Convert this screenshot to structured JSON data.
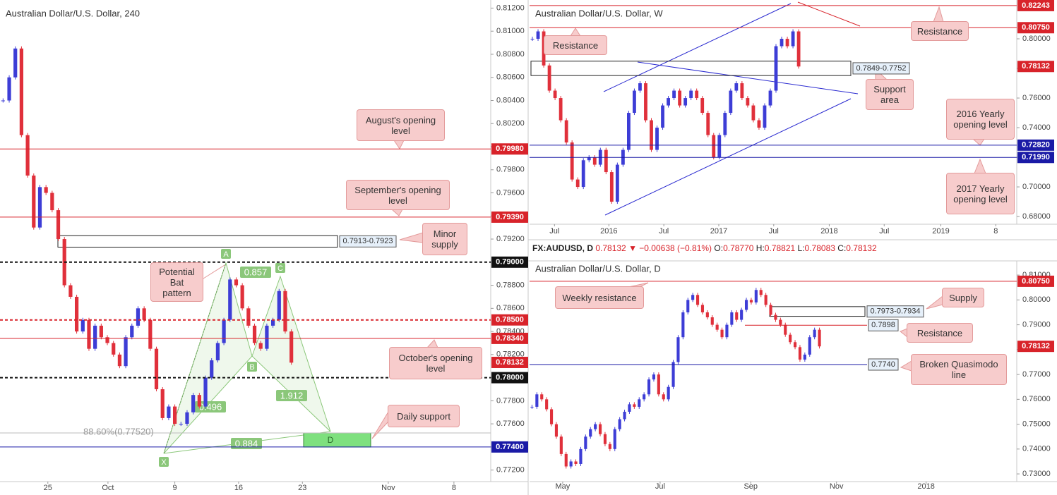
{
  "chart_data": [
    {
      "type": "candlestick",
      "title": "Australian Dollar/U.S. Dollar, 240",
      "up_color": "#3d3dd6",
      "down_color": "#e0303b",
      "closes": [
        0.804,
        0.806,
        0.8085,
        0.801,
        0.7975,
        0.793,
        0.7965,
        0.796,
        0.7945,
        0.792,
        0.788,
        0.787,
        0.784,
        0.785,
        0.7825,
        0.7845,
        0.7835,
        0.783,
        0.782,
        0.781,
        0.7835,
        0.7845,
        0.786,
        0.785,
        0.7825,
        0.779,
        0.7765,
        0.7775,
        0.776,
        0.776,
        0.777,
        0.7785,
        0.7775,
        0.78,
        0.7815,
        0.783,
        0.785,
        0.7885,
        0.788,
        0.786,
        0.7845,
        0.783,
        0.7825,
        0.7845,
        0.785,
        0.7875,
        0.784,
        0.7813
      ],
      "xlim": [
        0,
        80
      ],
      "xticks": [
        {
          "value": 7.8,
          "label": "25"
        },
        {
          "value": 17.6,
          "label": "Oct"
        },
        {
          "value": 28.5,
          "label": "9"
        },
        {
          "value": 38.9,
          "label": "16"
        },
        {
          "value": 49.3,
          "label": "23"
        },
        {
          "value": 63.3,
          "label": "Nov"
        },
        {
          "value": 74,
          "label": "8"
        }
      ],
      "ylim": [
        0.771,
        0.8127
      ],
      "yticks": [
        {
          "value": 0.812,
          "label": "0.81200"
        },
        {
          "value": 0.81,
          "label": "0.81000"
        },
        {
          "value": 0.808,
          "label": "0.80800"
        },
        {
          "value": 0.806,
          "label": "0.80600"
        },
        {
          "value": 0.804,
          "label": "0.80400"
        },
        {
          "value": 0.802,
          "label": "0.80200"
        },
        {
          "value": 0.8,
          "label": "0.80000"
        },
        {
          "value": 0.798,
          "label": "0.79800"
        },
        {
          "value": 0.796,
          "label": "0.79600"
        },
        {
          "value": 0.794,
          "label": "0.79400"
        },
        {
          "value": 0.792,
          "label": "0.79200"
        },
        {
          "value": 0.79,
          "label": "0.79000"
        },
        {
          "value": 0.788,
          "label": "0.78800"
        },
        {
          "value": 0.786,
          "label": "0.78600"
        },
        {
          "value": 0.784,
          "label": "0.78400"
        },
        {
          "value": 0.782,
          "label": "0.78200"
        },
        {
          "value": 0.78,
          "label": "0.78000"
        },
        {
          "value": 0.778,
          "label": "0.77800"
        },
        {
          "value": 0.776,
          "label": "0.77600"
        },
        {
          "value": 0.774,
          "label": "0.77400"
        },
        {
          "value": 0.772,
          "label": "0.77200"
        }
      ],
      "levels": [
        {
          "value": 0.7998,
          "label": "0.79980",
          "color": "#d8232a",
          "style": "solid"
        },
        {
          "value": 0.7939,
          "label": "0.79390",
          "color": "#d8232a",
          "style": "solid"
        },
        {
          "value": 0.79,
          "label": "0.79000",
          "color": "#111111",
          "style": "dashed"
        },
        {
          "value": 0.785,
          "label": "0.78500",
          "color": "#d8232a",
          "style": "dashed"
        },
        {
          "value": 0.7834,
          "label": "0.78340",
          "color": "#d8232a",
          "style": "solid"
        },
        {
          "value": 0.78132,
          "label": "0.78132",
          "color": "#d8232a",
          "style": "none"
        },
        {
          "value": 0.78,
          "label": "0.78000",
          "color": "#111111",
          "style": "dashed"
        },
        {
          "value": 0.774,
          "label": "0.77400",
          "color": "#1a1aa6",
          "style": "solid"
        }
      ],
      "zones": [
        {
          "low": 0.7913,
          "high": 0.7923,
          "label": "0.7913-0.7923"
        }
      ],
      "annotations": [
        "August's opening level",
        "September's opening level",
        "Minor supply",
        "Potential Bat pattern",
        "October's opening level",
        "Daily support"
      ],
      "pattern_points": [
        "X",
        "A",
        "B",
        "C",
        "D"
      ],
      "ratios": [
        0.857,
        0.496,
        1.912,
        0.884
      ],
      "retracement_label": "88.60%(0.77520)"
    },
    {
      "type": "candlestick",
      "title": "Australian Dollar/U.S. Dollar, W",
      "up_color": "#3d3dd6",
      "down_color": "#e0303b",
      "closes": [
        0.8,
        0.805,
        0.782,
        0.765,
        0.76,
        0.745,
        0.73,
        0.705,
        0.7,
        0.718,
        0.72,
        0.715,
        0.725,
        0.71,
        0.69,
        0.715,
        0.725,
        0.75,
        0.765,
        0.77,
        0.745,
        0.725,
        0.74,
        0.755,
        0.76,
        0.765,
        0.755,
        0.76,
        0.765,
        0.76,
        0.75,
        0.735,
        0.72,
        0.735,
        0.75,
        0.765,
        0.77,
        0.76,
        0.755,
        0.745,
        0.74,
        0.755,
        0.765,
        0.795,
        0.8,
        0.795,
        0.805,
        0.7813
      ],
      "xlim": [
        0,
        86
      ],
      "xticks": [
        {
          "value": 4.4,
          "label": "Jul"
        },
        {
          "value": 14.0,
          "label": "2016"
        },
        {
          "value": 23.7,
          "label": "Jul"
        },
        {
          "value": 33.4,
          "label": "2017"
        },
        {
          "value": 43.1,
          "label": "Jul"
        },
        {
          "value": 52.9,
          "label": "2018"
        },
        {
          "value": 62.6,
          "label": "Jul"
        },
        {
          "value": 72.6,
          "label": "2019"
        },
        {
          "value": 82.3,
          "label": "8"
        }
      ],
      "ylim": [
        0.6748,
        0.8262
      ],
      "yticks": [
        {
          "value": 0.8,
          "label": "0.80000"
        },
        {
          "value": 0.78,
          "label": "0.78000"
        },
        {
          "value": 0.76,
          "label": "0.76000"
        },
        {
          "value": 0.74,
          "label": "0.74000"
        },
        {
          "value": 0.72,
          "label": "0.72000"
        },
        {
          "value": 0.7,
          "label": "0.70000"
        },
        {
          "value": 0.68,
          "label": "0.68000"
        }
      ],
      "levels": [
        {
          "value": 0.82243,
          "label": "0.82243",
          "color": "#d8232a",
          "style": "solid"
        },
        {
          "value": 0.8075,
          "label": "0.80750",
          "color": "#d8232a",
          "style": "solid"
        },
        {
          "value": 0.78132,
          "label": "0.78132",
          "color": "#d8232a",
          "style": "none"
        },
        {
          "value": 0.7282,
          "label": "0.72820",
          "color": "#1a1aa6",
          "style": "solid"
        },
        {
          "value": 0.7199,
          "label": "0.71990",
          "color": "#1a1aa6",
          "style": "solid"
        }
      ],
      "zones": [
        {
          "low": 0.7752,
          "high": 0.7849,
          "label": "0.7849-0.7752"
        }
      ],
      "annotations": [
        "Resistance",
        "Resistance",
        "Support area",
        "2016 Yearly opening level",
        "2017 Yearly opening level"
      ]
    },
    {
      "type": "candlestick",
      "title": "Australian Dollar/U.S. Dollar, D",
      "up_color": "#3d3dd6",
      "down_color": "#e0303b",
      "closes": [
        0.757,
        0.762,
        0.76,
        0.756,
        0.75,
        0.745,
        0.738,
        0.733,
        0.735,
        0.734,
        0.74,
        0.745,
        0.748,
        0.75,
        0.746,
        0.742,
        0.74,
        0.748,
        0.752,
        0.755,
        0.758,
        0.757,
        0.76,
        0.762,
        0.768,
        0.77,
        0.762,
        0.76,
        0.765,
        0.775,
        0.785,
        0.795,
        0.8,
        0.802,
        0.798,
        0.795,
        0.793,
        0.79,
        0.788,
        0.785,
        0.79,
        0.795,
        0.792,
        0.796,
        0.8,
        0.799,
        0.804,
        0.802,
        0.798,
        0.794,
        0.792,
        0.79,
        0.786,
        0.783,
        0.781,
        0.776,
        0.778,
        0.785,
        0.788,
        0.7813
      ],
      "xlim": [
        0,
        100
      ],
      "xticks": [
        {
          "value": 6.8,
          "label": "May"
        },
        {
          "value": 26.8,
          "label": "Jul"
        },
        {
          "value": 45.4,
          "label": "Sep"
        },
        {
          "value": 63.0,
          "label": "Nov"
        },
        {
          "value": 81.4,
          "label": "2018"
        }
      ],
      "ylim": [
        0.7269,
        0.8157
      ],
      "yticks": [
        {
          "value": 0.81,
          "label": "0.81000"
        },
        {
          "value": 0.8,
          "label": "0.80000"
        },
        {
          "value": 0.79,
          "label": "0.79000"
        },
        {
          "value": 0.78,
          "label": "0.78000"
        },
        {
          "value": 0.77,
          "label": "0.77000"
        },
        {
          "value": 0.76,
          "label": "0.76000"
        },
        {
          "value": 0.75,
          "label": "0.75000"
        },
        {
          "value": 0.74,
          "label": "0.74000"
        },
        {
          "value": 0.73,
          "label": "0.73000"
        }
      ],
      "levels": [
        {
          "value": 0.8075,
          "label": "0.80750",
          "color": "#d8232a",
          "style": "solid"
        },
        {
          "value": 0.78132,
          "label": "0.78132",
          "color": "#d8232a",
          "style": "none"
        }
      ],
      "zones": [
        {
          "low": 0.7934,
          "high": 0.7973,
          "label": "0.7973-0.7934"
        }
      ],
      "tags": [
        {
          "value": 0.7898,
          "label": "0.7898",
          "color": "#d8232a"
        },
        {
          "value": 0.774,
          "label": "0.7740",
          "color": "#1a1aa6"
        }
      ],
      "annotations": [
        "Weekly resistance",
        "Supply",
        "Resistance",
        "Broken Quasimodo line"
      ]
    }
  ],
  "info_bar": {
    "symbol": "FX:AUDUSD, D",
    "last": "0.78132",
    "change": "▼ −0.00638 (−0.81%)",
    "open_label": "O:",
    "open": "0.78770",
    "high_label": "H:",
    "high": "0.78821",
    "low_label": "L:",
    "low": "0.78083",
    "close_label": "C:",
    "close": "0.78132"
  }
}
